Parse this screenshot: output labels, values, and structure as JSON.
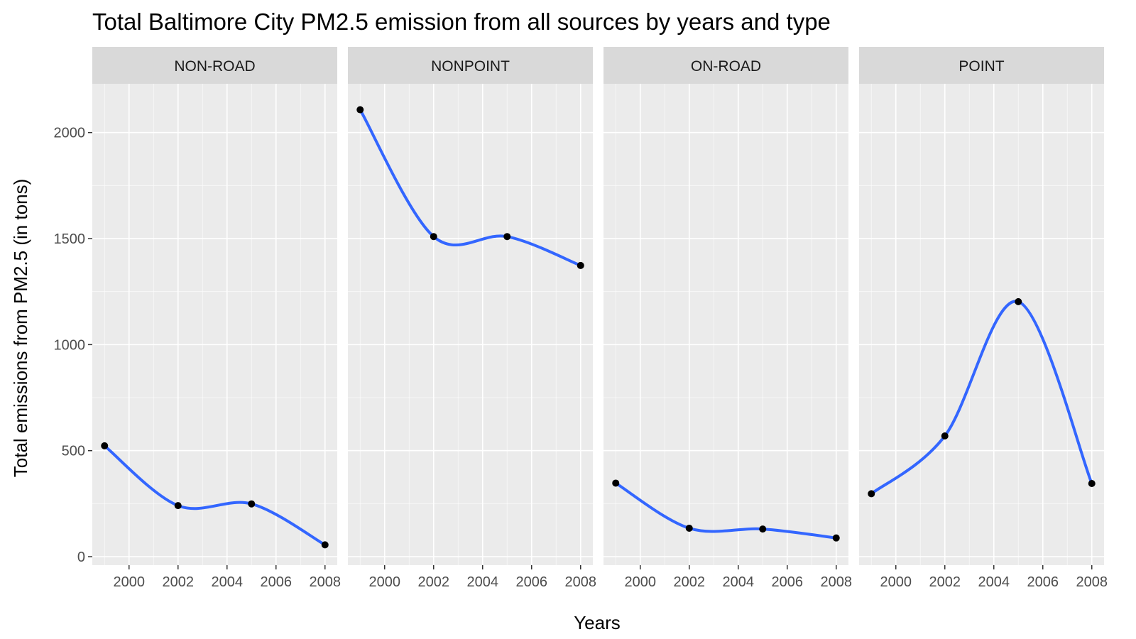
{
  "chart_data": {
    "type": "line",
    "title": "Total Baltimore City PM2.5 emission from all sources by years and type",
    "xlabel": "Years",
    "ylabel": "Total emissions from PM2.5 (in tons)",
    "x": [
      1999,
      2002,
      2005,
      2008
    ],
    "xlim": [
      1998.5,
      2008.5
    ],
    "ylim": [
      -40,
      2230
    ],
    "x_ticks": [
      2000,
      2002,
      2004,
      2006,
      2008
    ],
    "y_ticks": [
      0,
      500,
      1000,
      1500,
      2000
    ],
    "x_tick_labels": [
      "2000",
      "2002",
      "2004",
      "2006",
      "2008"
    ],
    "y_tick_labels": [
      "0",
      "500",
      "1000",
      "1500",
      "2000"
    ],
    "grid": true,
    "facets": [
      {
        "name": "NON-ROAD",
        "values": [
          522.9,
          240.8,
          248.9,
          55.8
        ]
      },
      {
        "name": "NONPOINT",
        "values": [
          2107.6,
          1509.5,
          1509.5,
          1373.2
        ]
      },
      {
        "name": "ON-ROAD",
        "values": [
          346.8,
          134.3,
          130.4,
          88.3
        ]
      },
      {
        "name": "POINT",
        "values": [
          296.8,
          569.3,
          1202.5,
          344.98
        ]
      }
    ],
    "colors": {
      "panel_background": "#ebebeb",
      "strip_background": "#d9d9d9",
      "grid_major": "#ffffff",
      "point": "#000000",
      "smooth_line": "#3366ff"
    }
  }
}
